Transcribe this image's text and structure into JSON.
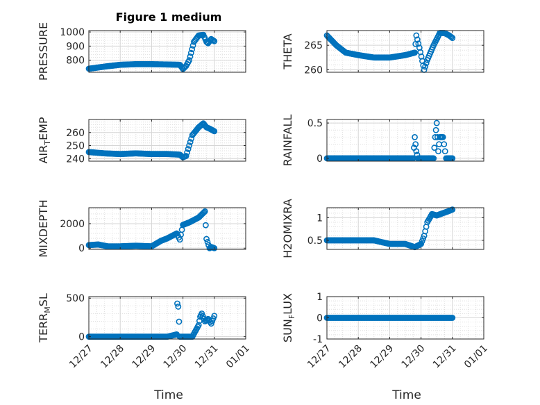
{
  "figure": {
    "title": "Figure 1 medium",
    "xlabel": "Time",
    "marker_color": "#0072BD",
    "axis_color": "#262626"
  },
  "chart_data": [
    {
      "id": "pressure",
      "type": "scatter",
      "title": "Figure 1 medium",
      "ylabel": {
        "main": "PRESSURE",
        "sub": ""
      },
      "ylim": [
        715,
        1010
      ],
      "yticks": [
        "800",
        "900",
        "1000"
      ],
      "ytick_values": [
        800,
        900,
        1000
      ],
      "xlim": [
        0,
        5
      ],
      "xticks": [
        "12/27",
        "12/28",
        "12/29",
        "12/30",
        "12/31",
        "01/01"
      ],
      "x": [
        0,
        0.5,
        1,
        1.5,
        2,
        2.5,
        2.9,
        3.0,
        3.1,
        3.2,
        3.35,
        3.5,
        3.65,
        3.75,
        3.8,
        3.9,
        4.0
      ],
      "y": [
        740,
        755,
        768,
        772,
        772,
        770,
        768,
        738,
        760,
        800,
        930,
        975,
        980,
        930,
        920,
        950,
        935
      ]
    },
    {
      "id": "theta",
      "type": "scatter",
      "ylabel": {
        "main": "THETA",
        "sub": ""
      },
      "ylim": [
        259.5,
        268
      ],
      "yticks": [
        "260",
        "265"
      ],
      "ytick_values": [
        260,
        265
      ],
      "xlim": [
        0,
        5
      ],
      "xticks": [
        "12/27",
        "12/28",
        "12/29",
        "12/30",
        "12/31",
        "01/01"
      ],
      "x": [
        0,
        0.3,
        0.6,
        1.0,
        1.5,
        2.0,
        2.5,
        2.8,
        2.85,
        2.95,
        3.1,
        3.2,
        3.4,
        3.6,
        3.75,
        3.9,
        4.0
      ],
      "y": [
        267,
        265,
        263.5,
        263,
        262.5,
        262.5,
        263,
        263.5,
        267,
        264.5,
        260,
        262,
        265,
        267.5,
        267.5,
        267,
        266.5
      ]
    },
    {
      "id": "air_temp",
      "type": "scatter",
      "ylabel": {
        "main": "AIR",
        "sub": "T",
        "tail": "EMP"
      },
      "ylim": [
        238,
        270
      ],
      "yticks": [
        "240",
        "250",
        "260"
      ],
      "ytick_values": [
        240,
        250,
        260
      ],
      "xlim": [
        0,
        5
      ],
      "xticks": [
        "12/27",
        "12/28",
        "12/29",
        "12/30",
        "12/31",
        "01/01"
      ],
      "x": [
        0,
        0.5,
        1.0,
        1.5,
        2.0,
        2.5,
        2.9,
        3.0,
        3.1,
        3.2,
        3.3,
        3.5,
        3.65,
        3.75,
        3.85,
        4.0
      ],
      "y": [
        245,
        244,
        243.5,
        244,
        243.5,
        243.5,
        243,
        241,
        242,
        250,
        258,
        264,
        267,
        264,
        263,
        261
      ]
    },
    {
      "id": "rainfall",
      "type": "scatter",
      "ylabel": {
        "main": "RAINFALL",
        "sub": ""
      },
      "ylim": [
        -0.04,
        0.55
      ],
      "yticks": [
        "0",
        "0.5"
      ],
      "ytick_values": [
        0,
        0.5
      ],
      "xlim": [
        0,
        5
      ],
      "xticks": [
        "12/27",
        "12/28",
        "12/29",
        "12/30",
        "12/31",
        "01/01"
      ],
      "x": [
        0,
        0.5,
        1.0,
        1.5,
        2.0,
        2.5,
        2.75,
        2.8,
        2.85,
        2.9,
        3.2,
        3.4,
        3.45,
        3.5,
        3.55,
        3.6,
        3.7,
        3.8,
        4.0
      ],
      "y": [
        0,
        0,
        0,
        0,
        0,
        0,
        0,
        0.3,
        0.1,
        0,
        0,
        0,
        0.3,
        0.5,
        0.1,
        0.3,
        0.3,
        0,
        0
      ]
    },
    {
      "id": "mixdepth",
      "type": "scatter",
      "ylabel": {
        "main": "MIXDEPTH",
        "sub": ""
      },
      "ylim": [
        -100,
        3300
      ],
      "yticks": [
        "0",
        "2000"
      ],
      "ytick_values": [
        0,
        2000
      ],
      "xlim": [
        0,
        5
      ],
      "xticks": [
        "12/27",
        "12/28",
        "12/29",
        "12/30",
        "12/31",
        "01/01"
      ],
      "x": [
        0,
        0.3,
        0.6,
        1.0,
        1.5,
        2.0,
        2.3,
        2.5,
        2.8,
        2.9,
        3.0,
        3.2,
        3.5,
        3.7,
        3.75,
        3.85,
        3.9,
        4.0
      ],
      "y": [
        250,
        300,
        150,
        150,
        200,
        150,
        600,
        800,
        1200,
        700,
        1900,
        2100,
        2500,
        3000,
        750,
        0,
        100,
        0
      ]
    },
    {
      "id": "h2omixra",
      "type": "scatter",
      "ylabel": {
        "main": "H2OMIXRA",
        "sub": ""
      },
      "ylim": [
        0.3,
        1.22
      ],
      "yticks": [
        "0.5",
        "1"
      ],
      "ytick_values": [
        0.5,
        1
      ],
      "xlim": [
        0,
        5
      ],
      "xticks": [
        "12/27",
        "12/28",
        "12/29",
        "12/30",
        "12/31",
        "01/01"
      ],
      "x": [
        0,
        0.5,
        1.0,
        1.5,
        2.0,
        2.5,
        2.8,
        3.0,
        3.1,
        3.2,
        3.35,
        3.5,
        3.7,
        3.9,
        4.0
      ],
      "y": [
        0.5,
        0.5,
        0.5,
        0.5,
        0.42,
        0.42,
        0.35,
        0.42,
        0.6,
        0.9,
        1.08,
        1.05,
        1.1,
        1.15,
        1.18
      ]
    },
    {
      "id": "terr_msl",
      "type": "scatter",
      "ylabel": {
        "main": "TERR",
        "sub": "M",
        "tail": "SL"
      },
      "ylim": [
        -30,
        520
      ],
      "yticks": [
        "0",
        "500"
      ],
      "ytick_values": [
        0,
        500
      ],
      "xlim": [
        0,
        5
      ],
      "xticks": [
        "12/27",
        "12/28",
        "12/29",
        "12/30",
        "12/31",
        "01/01"
      ],
      "x": [
        0,
        0.5,
        1.0,
        1.5,
        2.0,
        2.5,
        2.8,
        2.82,
        2.85,
        2.9,
        3.0,
        3.3,
        3.5,
        3.55,
        3.6,
        3.7,
        3.8,
        3.9,
        4.0
      ],
      "y": [
        0,
        0,
        0,
        0,
        0,
        0,
        30,
        430,
        390,
        0,
        0,
        0,
        150,
        260,
        300,
        200,
        230,
        170,
        270
      ]
    },
    {
      "id": "sun_flux",
      "type": "scatter",
      "ylabel": {
        "main": "SUN",
        "sub": "F",
        "tail": "LUX"
      },
      "ylim": [
        -1,
        1
      ],
      "yticks": [
        "-1",
        "0",
        "1"
      ],
      "ytick_values": [
        -1,
        0,
        1
      ],
      "xlim": [
        0,
        5
      ],
      "xticks": [
        "12/27",
        "12/28",
        "12/29",
        "12/30",
        "12/31",
        "01/01"
      ],
      "x": [
        0,
        1,
        2,
        3,
        4
      ],
      "y": [
        0,
        0,
        0,
        0,
        0
      ]
    }
  ]
}
